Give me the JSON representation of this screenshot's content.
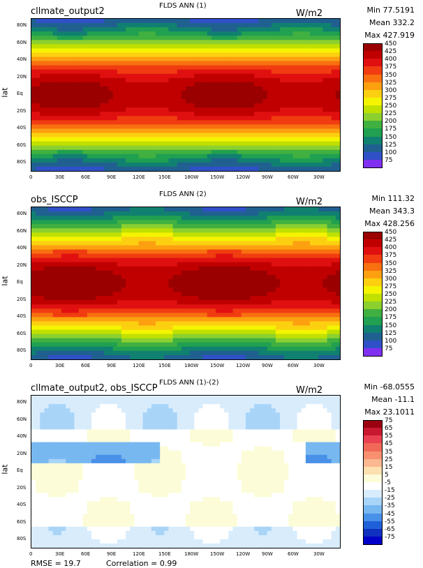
{
  "chart_data": [
    {
      "type": "heatmap",
      "case_name": "cllmate_output2",
      "title": "FLDS ANN (1)",
      "units": "W/m2",
      "ylabel": "lat",
      "stats": {
        "min": "Min 77.5191",
        "mean": "Mean 332.2",
        "max": "Max 427.919"
      },
      "y_ticks": [
        "80N",
        "60N",
        "40N",
        "20N",
        "Eq",
        "20S",
        "40S",
        "60S",
        "80S"
      ],
      "x_ticks": [
        "0",
        "30E",
        "60E",
        "90E",
        "120E",
        "150E",
        "180W",
        "150W",
        "120W",
        "90W",
        "60W",
        "30W"
      ],
      "colorbar": {
        "levels": [
          "450",
          "425",
          "400",
          "375",
          "350",
          "325",
          "300",
          "275",
          "250",
          "225",
          "200",
          "175",
          "150",
          "125",
          "100",
          "75"
        ],
        "colors": [
          "#9a0000",
          "#c00000",
          "#e01010",
          "#f03c10",
          "#f87010",
          "#fca010",
          "#fcd010",
          "#f4f400",
          "#c0e000",
          "#8cd030",
          "#40b040",
          "#20a050",
          "#108070",
          "#206090",
          "#3050c8",
          "#8030f0"
        ]
      },
      "field": "climate_output2 downwelling longwave, ~75-430 W/m2, warm tropics, cold poles"
    },
    {
      "type": "heatmap",
      "case_name": "obs_ISCCP",
      "title": "FLDS ANN (2)",
      "units": "W/m2",
      "ylabel": "lat",
      "stats": {
        "min": "Min 111.32",
        "mean": "Mean 343.3",
        "max": "Max 428.256"
      },
      "y_ticks": [
        "80N",
        "60N",
        "40N",
        "20N",
        "Eq",
        "20S",
        "40S",
        "60S",
        "80S"
      ],
      "x_ticks": [
        "0",
        "30E",
        "60E",
        "90E",
        "120E",
        "150E",
        "180W",
        "150W",
        "120W",
        "90W",
        "60W",
        "30W"
      ],
      "colorbar": {
        "levels": [
          "450",
          "425",
          "400",
          "375",
          "350",
          "325",
          "300",
          "275",
          "250",
          "225",
          "200",
          "175",
          "150",
          "125",
          "100",
          "75"
        ],
        "colors": [
          "#9a0000",
          "#c00000",
          "#e01010",
          "#f03c10",
          "#f87010",
          "#fca010",
          "#fcd010",
          "#f4f400",
          "#c0e000",
          "#8cd030",
          "#40b040",
          "#20a050",
          "#108070",
          "#206090",
          "#3050c8",
          "#8030f0"
        ]
      }
    },
    {
      "type": "heatmap",
      "case_name": "cllmate_output2, obs_ISCCP",
      "title": "FLDS ANN (1)-(2)",
      "units": "W/m2",
      "ylabel": "lat",
      "stats": {
        "min": "Min -68.0555",
        "mean": "Mean -11.1",
        "max": "Max 23.1011"
      },
      "y_ticks": [
        "80N",
        "60N",
        "40N",
        "20N",
        "Eq",
        "20S",
        "40S",
        "60S",
        "80S"
      ],
      "x_ticks": [
        "0",
        "30E",
        "60E",
        "90E",
        "120E",
        "150E",
        "180W",
        "150W",
        "120W",
        "90W",
        "60W",
        "30W"
      ],
      "colorbar": {
        "levels": [
          "75",
          "65",
          "55",
          "45",
          "35",
          "25",
          "15",
          "5",
          "-5",
          "-15",
          "-25",
          "-35",
          "-45",
          "-55",
          "-65",
          "-75"
        ],
        "colors": [
          "#9a0010",
          "#c81830",
          "#e84050",
          "#f06858",
          "#f89070",
          "#fcb890",
          "#fce0b0",
          "#fcfcd8",
          "#ffffff",
          "#d8ecfc",
          "#a8d4f8",
          "#78b8f0",
          "#4890e8",
          "#2060d8",
          "#1030c0",
          "#0000c8"
        ]
      },
      "footer": {
        "rmse": "RMSE = 19.7",
        "correlation": "Correlation = 0.99"
      }
    }
  ]
}
